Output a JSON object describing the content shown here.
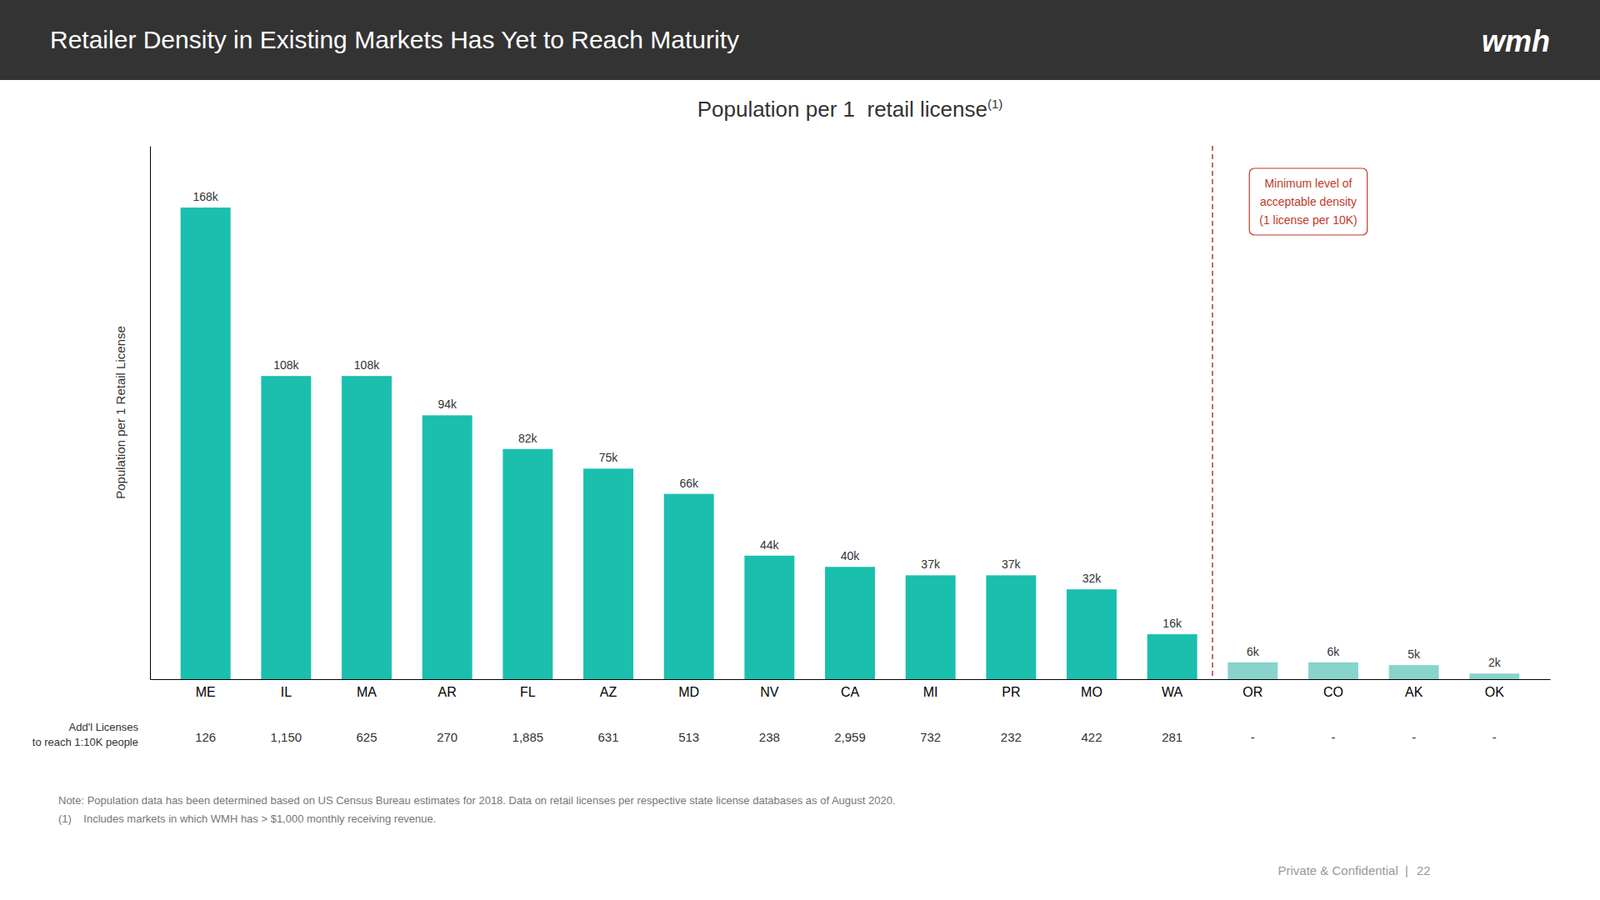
{
  "header": {
    "title": "Retailer Density in Existing Markets Has Yet to Reach Maturity",
    "logo": "wmh"
  },
  "chart_data": {
    "type": "bar",
    "title": "Population per 1  retail license",
    "title_superscript": "(1)",
    "ylabel": "Population per 1 Retail License",
    "categories": [
      "ME",
      "IL",
      "MA",
      "AR",
      "FL",
      "AZ",
      "MD",
      "NV",
      "CA",
      "MI",
      "PR",
      "MO",
      "WA",
      "OR",
      "CO",
      "AK",
      "OK"
    ],
    "values": [
      168000,
      108000,
      108000,
      94000,
      82000,
      75000,
      66000,
      44000,
      40000,
      37000,
      37000,
      32000,
      16000,
      6000,
      6000,
      5000,
      2000
    ],
    "value_labels": [
      "168k",
      "108k",
      "108k",
      "94k",
      "82k",
      "75k",
      "66k",
      "44k",
      "40k",
      "37k",
      "37k",
      "32k",
      "16k",
      "6k",
      "6k",
      "5k",
      "2k"
    ],
    "colors": [
      "#1BBFAD",
      "#1BBFAD",
      "#1BBFAD",
      "#1BBFAD",
      "#1BBFAD",
      "#1BBFAD",
      "#1BBFAD",
      "#1BBFAD",
      "#1BBFAD",
      "#1BBFAD",
      "#1BBFAD",
      "#1BBFAD",
      "#1BBFAD",
      "#88D4CC",
      "#88D4CC",
      "#88D4CC",
      "#88D4CC"
    ],
    "ylim": [
      0,
      190000
    ],
    "tick_labels": "x",
    "data_labels": true,
    "grid": false,
    "annotation": "Minimum level of\nacceptable density\n(1 license per 10K)",
    "additional_licenses_label": [
      "Add'l Licenses",
      "to reach 1:10K people"
    ],
    "additional_licenses": [
      "126",
      "1,150",
      "625",
      "270",
      "1,885",
      "631",
      "513",
      "238",
      "2,959",
      "732",
      "232",
      "422",
      "281",
      "-",
      "-",
      "-",
      "-"
    ]
  },
  "footnotes": [
    "Note: Population data has been determined based on US Census Bureau estimates for 2018. Data on retail licenses per respective state license databases as of August 2020.",
    "(1)    Includes markets in which WMH has > $1,000 monthly receiving revenue."
  ],
  "page_footer": [
    "Private & Confidential  |",
    "22"
  ]
}
